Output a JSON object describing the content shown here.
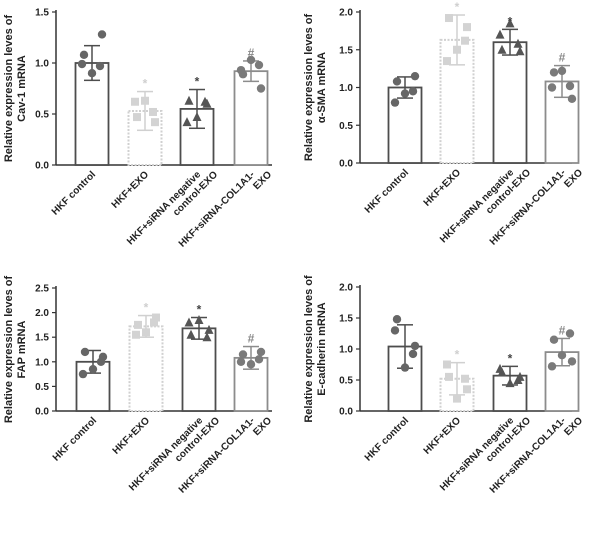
{
  "chart_data": [
    {
      "type": "bar",
      "panel": "cav1",
      "ylabel": [
        "Relative expression leves of",
        "Cav-1 mRNA"
      ],
      "yticks": [
        "0.0",
        "0.5",
        "1.0",
        "1.5"
      ],
      "ylim": [
        0,
        1.5
      ],
      "categories": [
        [
          "HKF control"
        ],
        [
          "HKF+EXO"
        ],
        [
          "HKF+siRNA negative",
          "control-EXO"
        ],
        [
          "HKF+siRNA-COL1A1-",
          "EXO"
        ]
      ],
      "values": [
        1.0,
        0.53,
        0.55,
        0.92
      ],
      "errors": [
        0.17,
        0.19,
        0.19,
        0.1
      ],
      "points": [
        [
          1.08,
          0.97,
          0.9,
          0.99,
          1.28
        ],
        [
          0.47,
          0.52,
          0.63,
          0.62,
          0.42
        ],
        [
          0.63,
          0.62,
          0.47,
          0.42,
          0.6
        ],
        [
          0.89,
          0.98,
          1.03,
          0.93,
          0.75
        ]
      ],
      "markers": [
        "",
        "*",
        "*",
        "#"
      ]
    },
    {
      "type": "bar",
      "panel": "asma",
      "ylabel": [
        "Relative expression leves of",
        "α-SMA mRNA"
      ],
      "yticks": [
        "0.0",
        "0.5",
        "1.0",
        "1.5",
        "2.0"
      ],
      "ylim": [
        0,
        2.0
      ],
      "categories": [
        [
          "HKF control"
        ],
        [
          "HKF+EXO"
        ],
        [
          "HKF+siRNA negative",
          "control-EXO"
        ],
        [
          "HKF+siRNA-COL1A1-",
          "EXO"
        ]
      ],
      "values": [
        1.0,
        1.63,
        1.6,
        1.08
      ],
      "errors": [
        0.14,
        0.33,
        0.17,
        0.21
      ],
      "points": [
        [
          1.08,
          0.95,
          0.92,
          0.8,
          1.15
        ],
        [
          1.92,
          1.62,
          1.5,
          1.35,
          1.8
        ],
        [
          1.5,
          1.58,
          1.85,
          1.7,
          1.48
        ],
        [
          1.2,
          1.02,
          1.22,
          1.0,
          0.85
        ]
      ],
      "markers": [
        "",
        "*",
        "*",
        "#"
      ]
    },
    {
      "type": "bar",
      "panel": "fap",
      "ylabel": [
        "Relative expression leves of",
        "FAP mRNA"
      ],
      "yticks": [
        "0.0",
        "0.5",
        "1.0",
        "1.5",
        "2.0",
        "2.5"
      ],
      "ylim": [
        0,
        2.5
      ],
      "categories": [
        [
          "HKF control"
        ],
        [
          "HKF+EXO"
        ],
        [
          "HKF+siRNA negative",
          "control-EXO"
        ],
        [
          "HKF+siRNA-COL1A1-",
          "EXO"
        ]
      ],
      "values": [
        1.0,
        1.72,
        1.68,
        1.08
      ],
      "errors": [
        0.23,
        0.22,
        0.22,
        0.23
      ],
      "points": [
        [
          1.2,
          1.0,
          0.85,
          0.75,
          1.1
        ],
        [
          1.75,
          1.8,
          1.6,
          1.55,
          1.9
        ],
        [
          1.55,
          1.5,
          1.85,
          1.8,
          1.65
        ],
        [
          1.15,
          1.05,
          0.95,
          1.0,
          1.2
        ]
      ],
      "markers": [
        "",
        "*",
        "*",
        "#"
      ]
    },
    {
      "type": "bar",
      "panel": "ecadherin",
      "ylabel": [
        "Relative expression leves of",
        "E-cadherin mRNA"
      ],
      "yticks": [
        "0.0",
        "0.5",
        "1.0",
        "1.5",
        "2.0"
      ],
      "ylim": [
        0,
        2.0
      ],
      "categories": [
        [
          "HKF control"
        ],
        [
          "HKF+EXO"
        ],
        [
          "HKF+siRNA negative",
          "control-EXO"
        ],
        [
          "HKF+siRNA-COL1A1-",
          "EXO"
        ]
      ],
      "values": [
        1.04,
        0.52,
        0.57,
        0.95
      ],
      "errors": [
        0.35,
        0.26,
        0.15,
        0.22
      ],
      "points": [
        [
          1.48,
          0.92,
          0.7,
          1.3,
          1.05
        ],
        [
          0.55,
          0.52,
          0.2,
          0.75,
          0.35
        ],
        [
          0.62,
          0.5,
          0.45,
          0.68,
          0.55
        ],
        [
          1.15,
          1.25,
          0.9,
          0.72,
          0.8
        ]
      ],
      "markers": [
        "",
        "*",
        "*",
        "#"
      ]
    }
  ],
  "style": {
    "bar_colors": [
      "#4d4d4d",
      "#d0d0d0",
      "#4d4d4d",
      "#8c8c8c"
    ],
    "point_colors": [
      "#666666",
      "#d3d3d3",
      "#555555",
      "#7a7a7a"
    ],
    "dotted_second_bar": [
      false,
      true,
      false,
      true
    ],
    "marker_colors": [
      "#444444",
      "#cfcfcf",
      "#444444",
      "#888888"
    ]
  }
}
